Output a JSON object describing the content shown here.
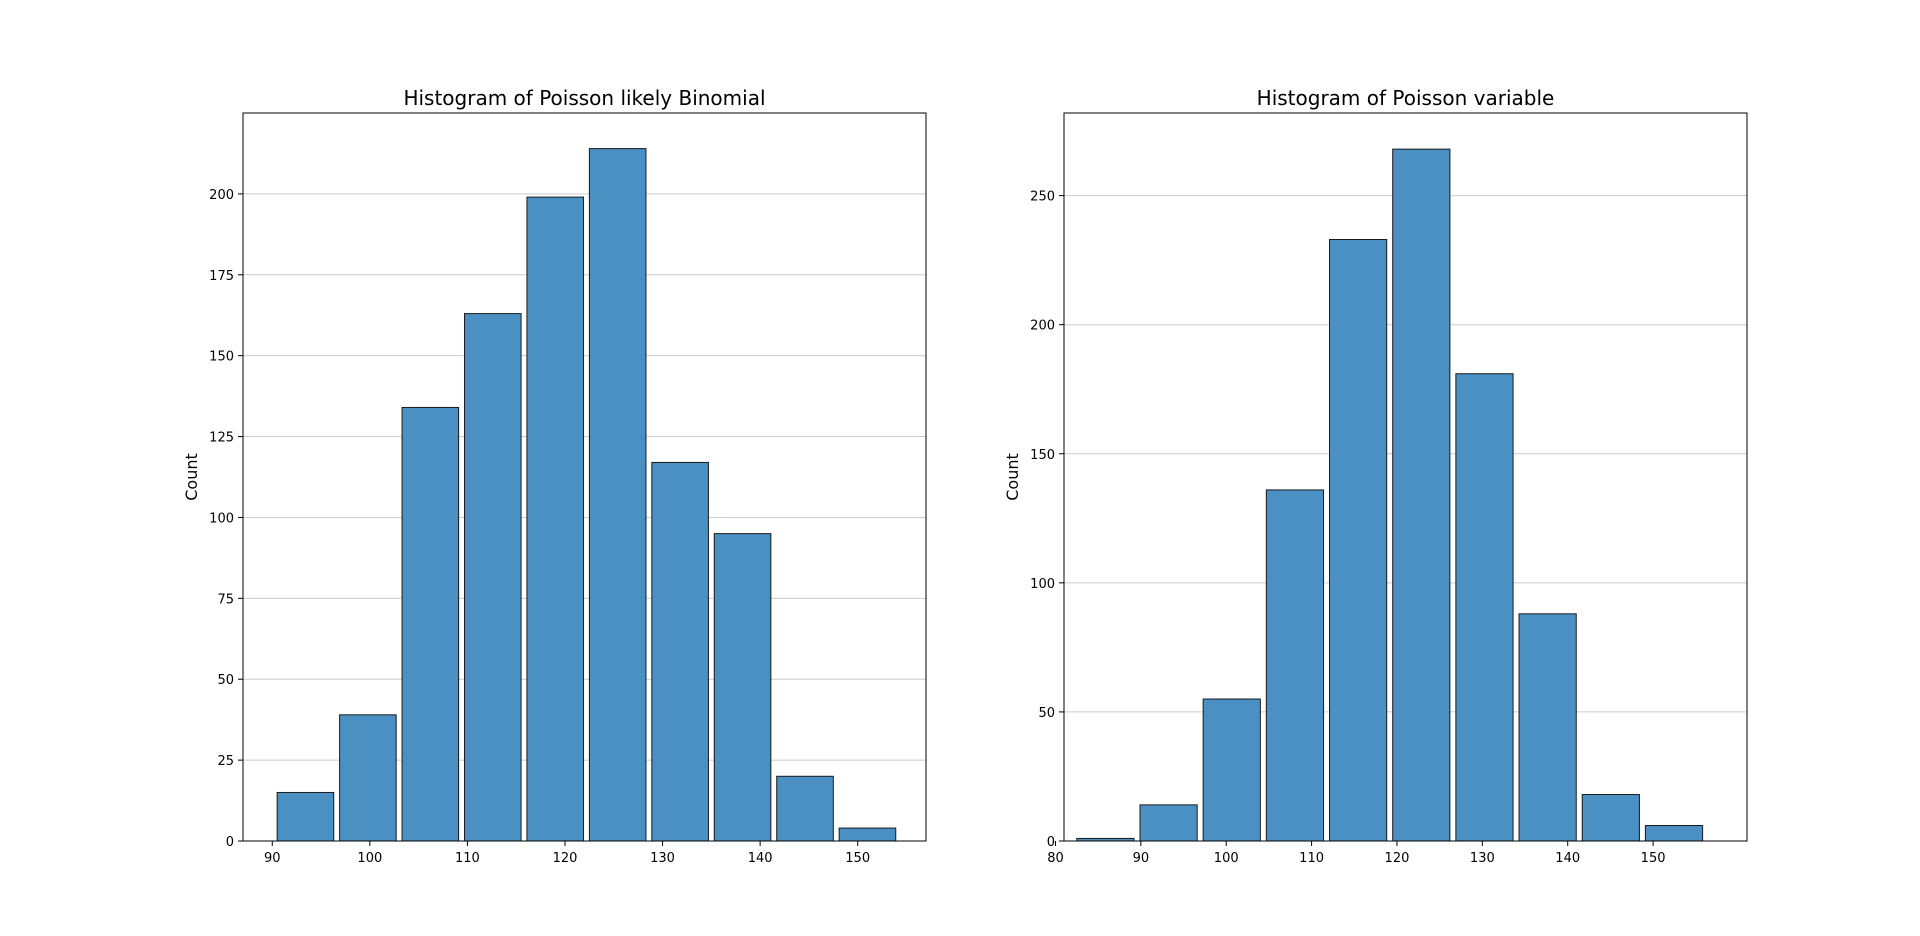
{
  "chart_data": [
    {
      "type": "bar",
      "title": "Histogram of Poisson likely Binomial",
      "xlabel": "",
      "ylabel": "Count",
      "xlim": [
        87,
        157
      ],
      "ylim": [
        0,
        225
      ],
      "xticks": [
        90,
        100,
        110,
        120,
        130,
        140,
        150
      ],
      "yticks": [
        0,
        25,
        50,
        75,
        100,
        125,
        150,
        175,
        200
      ],
      "grid": "y",
      "bars": [
        {
          "x0": 90.5,
          "x1": 96.3,
          "value": 15
        },
        {
          "x0": 96.9,
          "x1": 102.7,
          "value": 39
        },
        {
          "x0": 103.3,
          "x1": 109.1,
          "value": 134
        },
        {
          "x0": 109.7,
          "x1": 115.5,
          "value": 163
        },
        {
          "x0": 116.1,
          "x1": 121.9,
          "value": 199
        },
        {
          "x0": 122.5,
          "x1": 128.3,
          "value": 214
        },
        {
          "x0": 128.9,
          "x1": 134.7,
          "value": 117
        },
        {
          "x0": 135.3,
          "x1": 141.1,
          "value": 95
        },
        {
          "x0": 141.7,
          "x1": 147.5,
          "value": 20
        },
        {
          "x0": 148.1,
          "x1": 153.9,
          "value": 4
        }
      ],
      "color": "#4a90c2"
    },
    {
      "type": "bar",
      "title": "Histogram of Poisson variable",
      "xlabel": "",
      "ylabel": "Count",
      "xlim": [
        81,
        161
      ],
      "ylim": [
        0,
        282
      ],
      "xticks": [
        80,
        90,
        100,
        110,
        120,
        130,
        140,
        150
      ],
      "yticks": [
        0,
        50,
        100,
        150,
        200,
        250
      ],
      "grid": "y",
      "bars": [
        {
          "x0": 82.5,
          "x1": 89.2,
          "value": 1
        },
        {
          "x0": 89.9,
          "x1": 96.6,
          "value": 14
        },
        {
          "x0": 97.3,
          "x1": 104.0,
          "value": 55
        },
        {
          "x0": 104.7,
          "x1": 111.4,
          "value": 136
        },
        {
          "x0": 112.1,
          "x1": 118.8,
          "value": 233
        },
        {
          "x0": 119.5,
          "x1": 126.2,
          "value": 268
        },
        {
          "x0": 126.9,
          "x1": 133.6,
          "value": 181
        },
        {
          "x0": 134.3,
          "x1": 141.0,
          "value": 88
        },
        {
          "x0": 141.7,
          "x1": 148.4,
          "value": 18
        },
        {
          "x0": 149.1,
          "x1": 155.8,
          "value": 6
        }
      ],
      "color": "#4a90c2"
    }
  ]
}
